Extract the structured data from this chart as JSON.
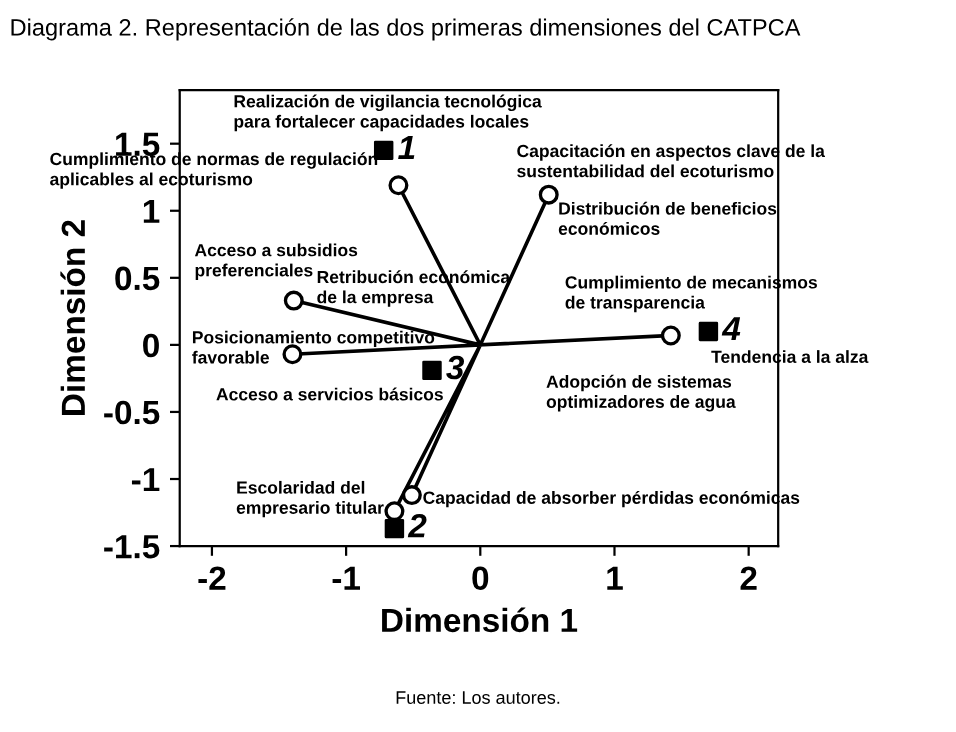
{
  "chart_data": {
    "type": "scatter",
    "title": "Diagrama 2. Representación de las dos primeras dimensiones del CATPCA",
    "xlabel": "Dimensión 1",
    "ylabel": "Dimensión 2",
    "xlim": [
      -2.24,
      2.22
    ],
    "ylim": [
      -1.5,
      1.9
    ],
    "xticks": [
      -2,
      -1,
      0,
      1,
      2
    ],
    "yticks": [
      -1.5,
      -1,
      -0.5,
      0,
      0.5,
      1,
      1.5
    ],
    "grid": false,
    "series": [
      {
        "type": "line",
        "color": "#000000",
        "marker": "circle",
        "x": [
          0,
          -0.61,
          null,
          0,
          -1.39,
          null,
          0,
          -1.4,
          null,
          0,
          -0.51,
          null,
          0,
          -0.64,
          null,
          0,
          0.51,
          null,
          0,
          1.42
        ],
        "values": [
          0,
          1.19,
          null,
          0,
          0.33,
          null,
          0,
          -0.07,
          null,
          0,
          -1.12,
          null,
          0,
          -1.24,
          null,
          0,
          1.12,
          null,
          0,
          0.07
        ]
      },
      {
        "name": "1",
        "color": "#000000",
        "marker": "square",
        "x": [
          -0.72
        ],
        "values": [
          1.45
        ]
      },
      {
        "name": "2",
        "color": "#000000",
        "marker": "square",
        "x": [
          -0.64
        ],
        "values": [
          -1.37
        ]
      },
      {
        "name": "3",
        "color": "#000000",
        "marker": "square",
        "x": [
          -0.36
        ],
        "values": [
          -0.19
        ]
      },
      {
        "name": "4",
        "color": "#000000",
        "marker": "square",
        "x": [
          1.7
        ],
        "values": [
          0.1
        ]
      }
    ],
    "annotations": [
      "Realización de vigilancia tecnológica\npara fortalecer capacidades locales",
      "Cumplimiento de normas de regulación\naplicables al ecoturismo",
      "Acceso a subsidios\npreferenciales",
      "Retribución económica\nde la empresa",
      "Posicionamiento competitivo\nfavorable",
      "Acceso a servicios básicos",
      "Escolaridad del\nempresario titular",
      "Capacidad de absorber pérdidas económicas",
      "Capacitación en aspectos clave de la\nsustentabilidad del ecoturismo",
      "Distribución de beneficios\neconómicos",
      "Cumplimiento de mecanismos\nde transparencia",
      "Tendencia a la alza",
      "Adopción de sistemas\noptimizadores de agua",
      "Fuente: Los autores."
    ]
  }
}
